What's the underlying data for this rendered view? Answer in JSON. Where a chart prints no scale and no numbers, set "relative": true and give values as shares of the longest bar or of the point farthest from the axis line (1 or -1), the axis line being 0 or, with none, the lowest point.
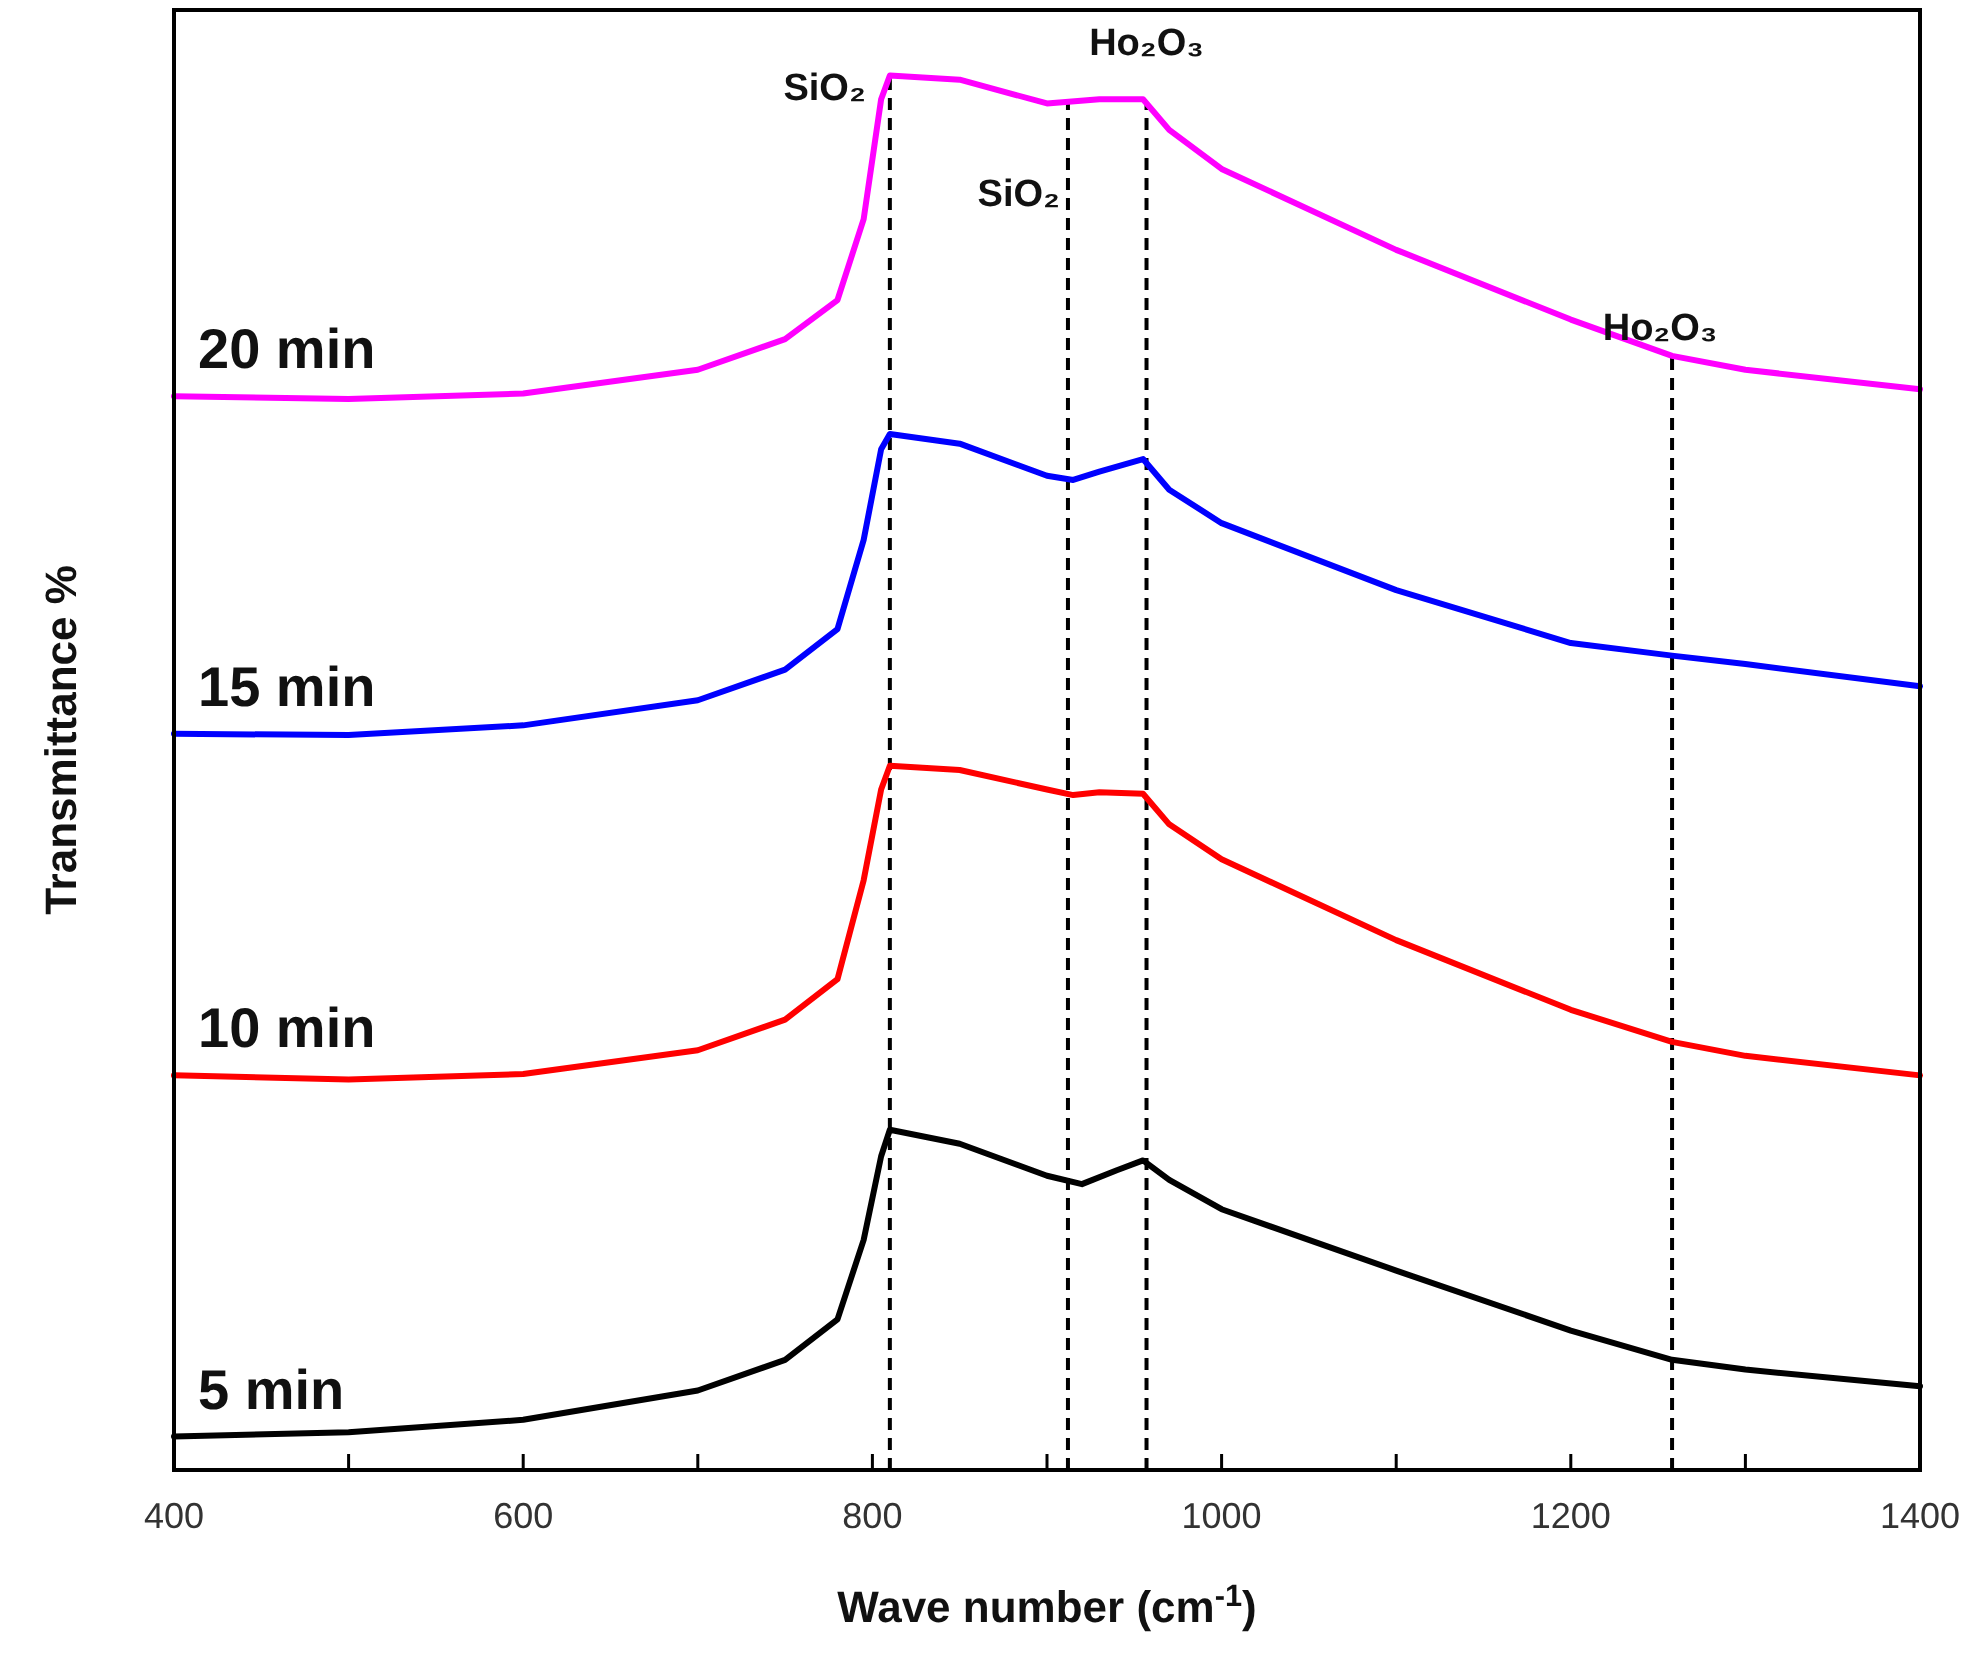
{
  "chart_data": {
    "type": "line",
    "xlabel": "Wave number (cm$^{-1}$)",
    "ylabel": "Transmittance %",
    "relative": true,
    "legend": false,
    "grid": false,
    "marker": "none",
    "line_style": "solid",
    "xlim": [
      400,
      1400
    ],
    "xticks": [
      400,
      {
        "value": 500,
        "label": null
      },
      600,
      {
        "value": 700,
        "label": null
      },
      800,
      {
        "value": 900,
        "label": null
      },
      1000,
      {
        "value": 1100,
        "label": null
      },
      1200,
      {
        "value": 1300,
        "label": null
      },
      1400
    ],
    "series": [
      {
        "name": "5 min",
        "color": "#000000",
        "x": [
          400,
          500,
          600,
          700,
          750,
          780,
          795,
          805,
          810,
          850,
          900,
          920,
          940,
          955,
          970,
          1000,
          1100,
          1200,
          1258,
          1300,
          1400
        ],
        "values": [
          0.024,
          0.027,
          0.036,
          0.057,
          0.079,
          0.108,
          0.165,
          0.225,
          0.244,
          0.234,
          0.211,
          0.205,
          0.215,
          0.222,
          0.208,
          0.187,
          0.143,
          0.1,
          0.079,
          0.072,
          0.06
        ]
      },
      {
        "name": "10 min",
        "color": "#ff0000",
        "x": [
          400,
          500,
          600,
          700,
          750,
          780,
          795,
          805,
          810,
          850,
          900,
          915,
          930,
          955,
          970,
          1000,
          1100,
          1200,
          1258,
          1300,
          1400
        ],
        "values": [
          0.283,
          0.28,
          0.284,
          0.301,
          0.323,
          0.352,
          0.423,
          0.488,
          0.505,
          0.502,
          0.488,
          0.484,
          0.486,
          0.485,
          0.463,
          0.438,
          0.38,
          0.33,
          0.307,
          0.297,
          0.283
        ]
      },
      {
        "name": "15 min",
        "color": "#0000ff",
        "x": [
          400,
          500,
          600,
          700,
          750,
          780,
          795,
          805,
          810,
          850,
          900,
          915,
          930,
          955,
          970,
          1000,
          1100,
          1200,
          1258,
          1300,
          1400
        ],
        "values": [
          0.528,
          0.527,
          0.534,
          0.552,
          0.574,
          0.603,
          0.667,
          0.732,
          0.743,
          0.736,
          0.713,
          0.71,
          0.716,
          0.725,
          0.703,
          0.679,
          0.631,
          0.593,
          0.584,
          0.578,
          0.562
        ]
      },
      {
        "name": "20 min",
        "color": "#ff00ff",
        "x": [
          400,
          500,
          600,
          700,
          750,
          780,
          795,
          805,
          810,
          850,
          900,
          930,
          955,
          970,
          1000,
          1100,
          1200,
          1258,
          1300,
          1400
        ],
        "values": [
          0.77,
          0.768,
          0.772,
          0.789,
          0.811,
          0.839,
          0.897,
          0.983,
          1.0,
          0.997,
          0.98,
          0.983,
          0.983,
          0.961,
          0.933,
          0.875,
          0.825,
          0.799,
          0.789,
          0.775
        ]
      }
    ],
    "ref_lines": [
      {
        "axis": "x",
        "value": 810,
        "color": "#000000",
        "line_style": "dashed"
      },
      {
        "axis": "x",
        "value": 912,
        "color": "#000000",
        "line_style": "dashed"
      },
      {
        "axis": "x",
        "value": 957,
        "color": "#000000",
        "line_style": "dashed"
      },
      {
        "axis": "x",
        "value": 1258,
        "color": "#000000",
        "line_style": "dashed"
      }
    ],
    "annotations": [
      {
        "text": "SiO₂",
        "x": 810,
        "y": 1.0
      },
      {
        "text": "SiO₂",
        "x": 912,
        "y": 0.981
      },
      {
        "text": "Ho₂O₃",
        "x": 957,
        "y": 0.983
      },
      {
        "text": "Ho₂O₃",
        "x": 1258,
        "y": 0.799
      }
    ]
  }
}
